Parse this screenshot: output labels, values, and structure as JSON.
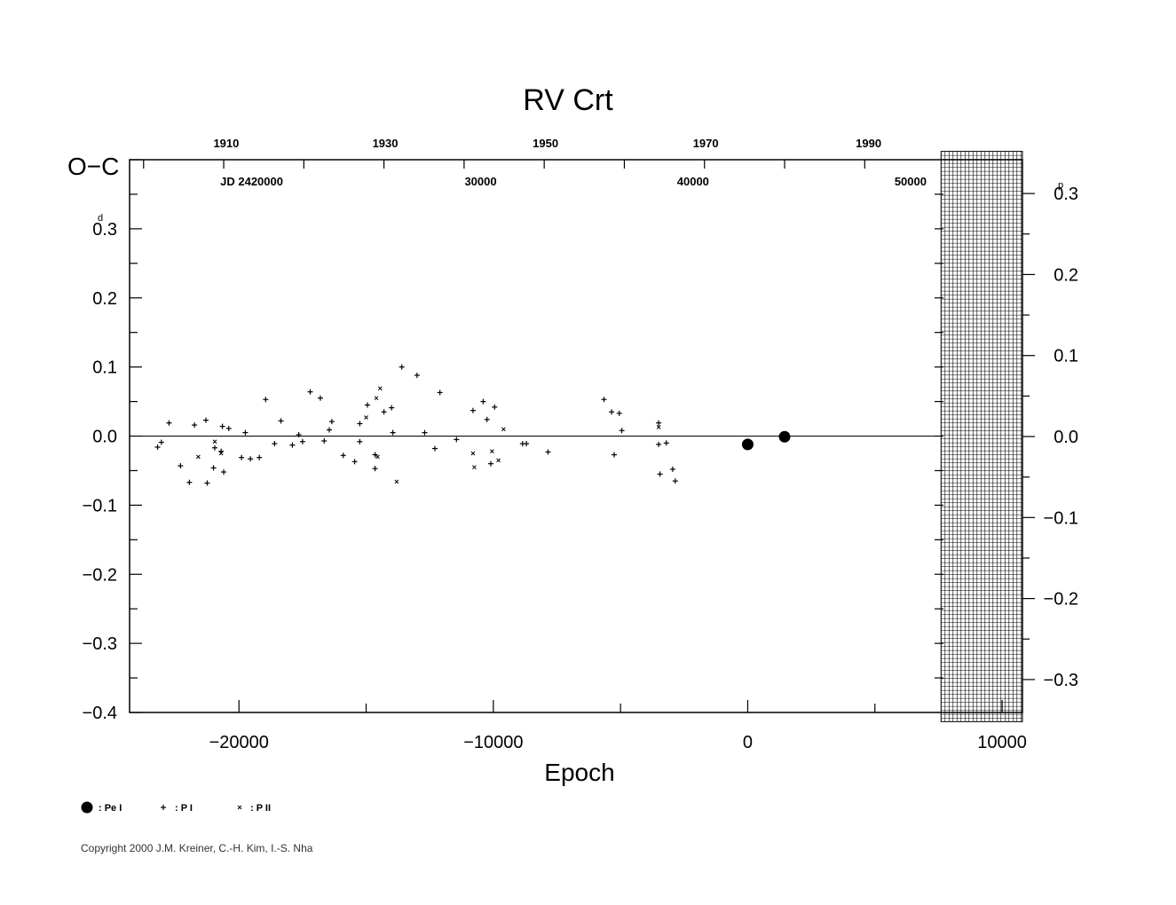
{
  "chart_data": {
    "type": "scatter",
    "title": "RV  Crt",
    "xlabel": "Epoch",
    "ylabel": "O−C",
    "y_unit_left": "d",
    "y_unit_right": "p",
    "xlim": [
      -24300,
      10800
    ],
    "ylim": [
      -0.4,
      0.4
    ],
    "x_ticks": [
      -20000,
      -10000,
      0,
      10000
    ],
    "x_tick_labels": [
      "−20000",
      "−10000",
      "0",
      "10000"
    ],
    "y_ticks": [
      0.3,
      0.2,
      0.1,
      0.0,
      -0.1,
      -0.2,
      -0.3,
      -0.4
    ],
    "y_tick_labels": [
      "0.3",
      "0.2",
      "0.1",
      "0.0",
      "−0.1",
      "−0.2",
      "−0.3",
      "−0.4"
    ],
    "right_ticks": [
      0.3,
      0.2,
      0.1,
      0.0,
      -0.1,
      -0.2,
      -0.3
    ],
    "right_tick_labels": [
      "0.3",
      "0.2",
      "0.1",
      "0.0",
      "−0.1",
      "−0.2",
      "−0.3"
    ],
    "right_ylim": [
      -0.338,
      0.338
    ],
    "top_year_labels": [
      {
        "label": "1910",
        "epoch": -20500
      },
      {
        "label": "1930",
        "epoch": -14250
      },
      {
        "label": "1950",
        "epoch": -7950
      },
      {
        "label": "1970",
        "epoch": -1650
      },
      {
        "label": "1990",
        "epoch": 4750
      }
    ],
    "top_jd_labels": [
      {
        "label": "JD 2420000",
        "epoch": -19500
      },
      {
        "label": "30000",
        "epoch": -10500
      },
      {
        "label": "40000",
        "epoch": -2150
      },
      {
        "label": "50000",
        "epoch": 6400
      }
    ],
    "shaded_region": {
      "x_range": [
        7600,
        10800
      ],
      "y_range": [
        -0.352,
        0.352
      ]
    },
    "series": [
      {
        "name": ": Pe I",
        "marker": "dot",
        "points": [
          [
            0,
            -0.012
          ],
          [
            1450,
            -0.001
          ]
        ]
      },
      {
        "name": ": P I",
        "marker": "plus",
        "points": [
          [
            -23200,
            -0.016
          ],
          [
            -23050,
            -0.009
          ],
          [
            -22750,
            0.019
          ],
          [
            -22300,
            -0.043
          ],
          [
            -21950,
            -0.067
          ],
          [
            -21750,
            0.016
          ],
          [
            -21300,
            0.023
          ],
          [
            -21250,
            -0.068
          ],
          [
            -21000,
            -0.046
          ],
          [
            -20950,
            -0.017
          ],
          [
            -20700,
            -0.022
          ],
          [
            -20650,
            0.014
          ],
          [
            -20600,
            -0.052
          ],
          [
            -20400,
            0.011
          ],
          [
            -19900,
            -0.031
          ],
          [
            -19750,
            0.005
          ],
          [
            -19550,
            -0.033
          ],
          [
            -19200,
            -0.031
          ],
          [
            -18950,
            0.053
          ],
          [
            -18600,
            -0.011
          ],
          [
            -18350,
            0.022
          ],
          [
            -17900,
            -0.013
          ],
          [
            -17650,
            0.002
          ],
          [
            -17500,
            -0.008
          ],
          [
            -17200,
            0.064
          ],
          [
            -16800,
            0.055
          ],
          [
            -16650,
            -0.007
          ],
          [
            -16450,
            0.009
          ],
          [
            -16350,
            0.021
          ],
          [
            -15900,
            -0.028
          ],
          [
            -15450,
            -0.037
          ],
          [
            -15250,
            0.018
          ],
          [
            -15250,
            -0.008
          ],
          [
            -14950,
            0.045
          ],
          [
            -14650,
            -0.047
          ],
          [
            -14650,
            -0.027
          ],
          [
            -14300,
            0.035
          ],
          [
            -14000,
            0.041
          ],
          [
            -13950,
            0.005
          ],
          [
            -13600,
            0.1
          ],
          [
            -13000,
            0.088
          ],
          [
            -12700,
            0.005
          ],
          [
            -12300,
            -0.018
          ],
          [
            -12100,
            0.063
          ],
          [
            -11450,
            -0.005
          ],
          [
            -10800,
            0.037
          ],
          [
            -10400,
            0.05
          ],
          [
            -10250,
            0.024
          ],
          [
            -10100,
            -0.04
          ],
          [
            -9950,
            0.042
          ],
          [
            -8850,
            -0.011
          ],
          [
            -8700,
            -0.011
          ],
          [
            -7850,
            -0.023
          ],
          [
            -5650,
            0.053
          ],
          [
            -5350,
            0.035
          ],
          [
            -5250,
            -0.027
          ],
          [
            -5050,
            0.033
          ],
          [
            -4950,
            0.008
          ],
          [
            -3500,
            0.019
          ],
          [
            -3500,
            -0.012
          ],
          [
            -3450,
            -0.055
          ],
          [
            -3200,
            -0.01
          ],
          [
            -2950,
            -0.048
          ],
          [
            -2850,
            -0.065
          ]
        ]
      },
      {
        "name": ": P II",
        "marker": "cross",
        "points": [
          [
            -21600,
            -0.03
          ],
          [
            -20950,
            -0.008
          ],
          [
            -20700,
            -0.025
          ],
          [
            -15000,
            0.027
          ],
          [
            -14600,
            0.055
          ],
          [
            -14550,
            -0.03
          ],
          [
            -14450,
            0.069
          ],
          [
            -13800,
            -0.066
          ],
          [
            -10800,
            -0.025
          ],
          [
            -10750,
            -0.045
          ],
          [
            -10050,
            -0.022
          ],
          [
            -9800,
            -0.035
          ],
          [
            -9600,
            0.01
          ],
          [
            -3500,
            0.013
          ]
        ]
      }
    ],
    "reference_line": 0.0
  },
  "copyright": "Copyright 2000 J.M. Kreiner, C.-H. Kim, I.-S. Nha"
}
